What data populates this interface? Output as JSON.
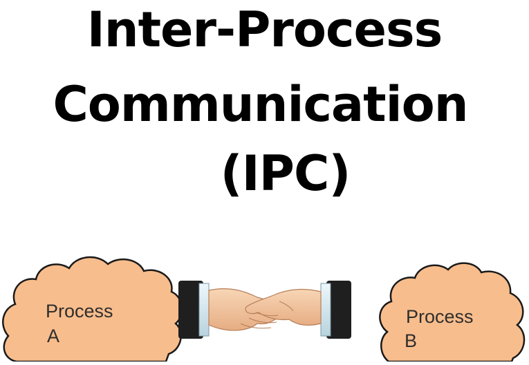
{
  "title": {
    "line1": "Inter-Process",
    "line2": "Communication",
    "line3": "(IPC)"
  },
  "process_a": {
    "label_line1": "Process",
    "label_line2": "A"
  },
  "process_b": {
    "label_line1": "Process",
    "label_line2": "B"
  },
  "colors": {
    "cloud_fill": "#f8bd8c",
    "cloud_stroke": "#1a1a1a",
    "cuff": "#1f1f1f",
    "sleeve": "#d9eaf2",
    "skin": "#f4c9a2"
  },
  "icons": [
    "cloud-icon",
    "handshake-icon"
  ]
}
